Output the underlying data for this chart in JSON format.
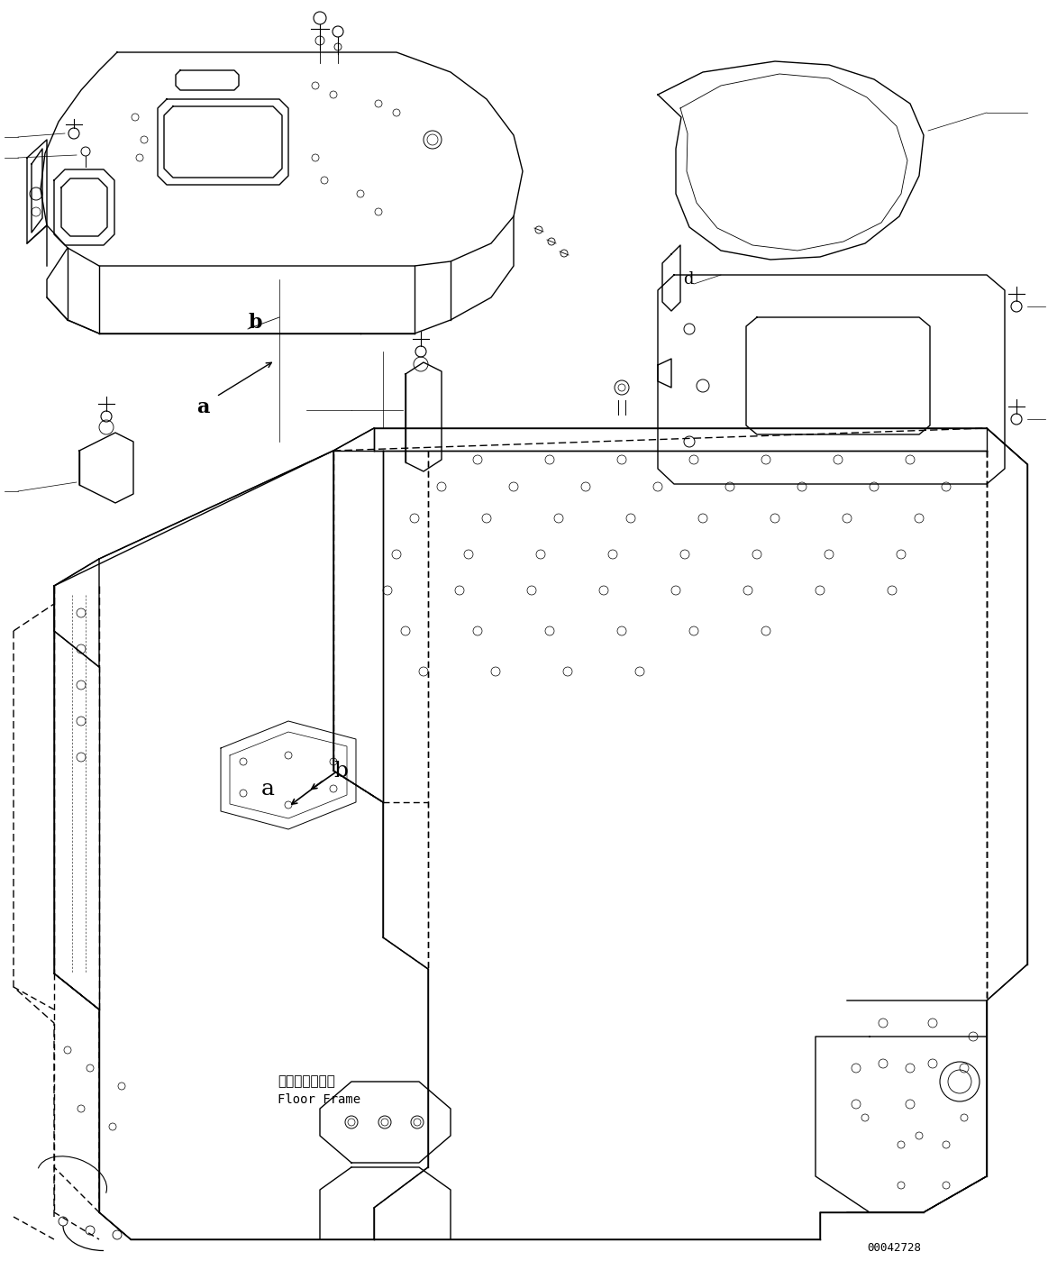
{
  "background_color": "#ffffff",
  "figure_width": 11.63,
  "figure_height": 14.09,
  "dpi": 100,
  "part_id": "00042728",
  "label_floor_frame_jp": "フロアフレーム",
  "label_floor_frame_en": "Floor Frame",
  "lc": "#000000",
  "lw": 1.0,
  "tlw": 0.6
}
